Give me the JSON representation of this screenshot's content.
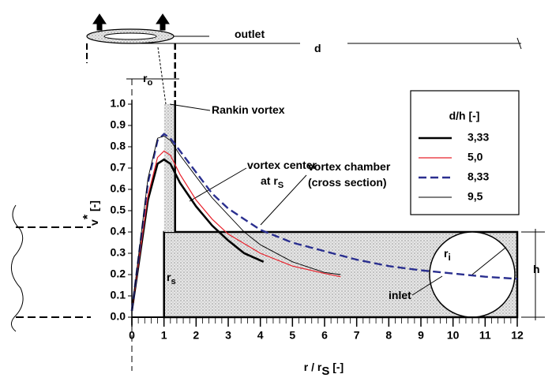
{
  "chart_data": {
    "type": "line",
    "xlabel": {
      "text": "r / r",
      "sub": "S",
      "unit": " [-]"
    },
    "ylabel": {
      "text": "v",
      "sup": "*",
      "unit": " [-]"
    },
    "legend_title": "d/h [-]",
    "xlim": [
      0,
      12
    ],
    "xticks": [
      0,
      1,
      2,
      3,
      4,
      5,
      6,
      7,
      8,
      9,
      10,
      11,
      12
    ],
    "ylim": [
      0,
      1
    ],
    "yticks": [
      {
        "value": 0,
        "label": "0.0"
      },
      0.1,
      0.2,
      0.3,
      0.4,
      0.5,
      0.6,
      0.7,
      0.8,
      0.9,
      {
        "value": 1,
        "label": "1.0"
      }
    ],
    "series": [
      {
        "name": "3,33",
        "color": "#000000",
        "dash": false,
        "width": 2.6,
        "x": [
          0,
          0.5,
          0.8,
          1,
          1.2,
          1.5,
          2,
          2.5,
          3,
          3.5,
          4.1
        ],
        "values": [
          0.03,
          0.55,
          0.72,
          0.74,
          0.72,
          0.63,
          0.52,
          0.43,
          0.36,
          0.3,
          0.26
        ]
      },
      {
        "name": "5,0",
        "color": "#e8202a",
        "dash": false,
        "width": 1.2,
        "x": [
          0,
          0.5,
          0.8,
          1,
          1.2,
          1.5,
          2,
          2.5,
          3,
          4,
          5,
          6,
          6.5
        ],
        "values": [
          0.03,
          0.57,
          0.75,
          0.78,
          0.76,
          0.67,
          0.55,
          0.46,
          0.39,
          0.3,
          0.24,
          0.205,
          0.19
        ]
      },
      {
        "name": "8,33",
        "color": "#2a2f8f",
        "dash": true,
        "width": 2.4,
        "x": [
          0,
          0.5,
          0.8,
          1,
          1.2,
          1.5,
          2,
          2.5,
          3,
          4,
          5,
          6,
          7,
          8,
          9,
          10,
          11,
          12
        ],
        "values": [
          0.03,
          0.63,
          0.83,
          0.86,
          0.84,
          0.78,
          0.68,
          0.58,
          0.51,
          0.41,
          0.35,
          0.31,
          0.27,
          0.24,
          0.22,
          0.205,
          0.19,
          0.18
        ]
      },
      {
        "name": "9,5",
        "color": "#000000",
        "dash": false,
        "width": 0.9,
        "x": [
          0,
          0.5,
          0.8,
          1,
          1.2,
          1.5,
          2,
          2.5,
          3,
          3.5,
          4,
          5,
          6,
          6.5
        ],
        "values": [
          0.03,
          0.65,
          0.84,
          0.85,
          0.83,
          0.76,
          0.66,
          0.56,
          0.48,
          0.4,
          0.34,
          0.26,
          0.21,
          0.2
        ]
      }
    ],
    "annotations": [
      {
        "text": "outlet"
      },
      {
        "text": "d"
      },
      {
        "text": "r",
        "sub": "o"
      },
      {
        "text": "Rankin vortex"
      },
      {
        "text": "vortex center"
      },
      {
        "text": "at r",
        "sub": "S"
      },
      {
        "text": "vortex chamber"
      },
      {
        "text": "(cross section)"
      },
      {
        "text": "r",
        "sub": "s"
      },
      {
        "text": "r",
        "sub": "i"
      },
      {
        "text": "h"
      },
      {
        "text": "inlet"
      }
    ]
  }
}
